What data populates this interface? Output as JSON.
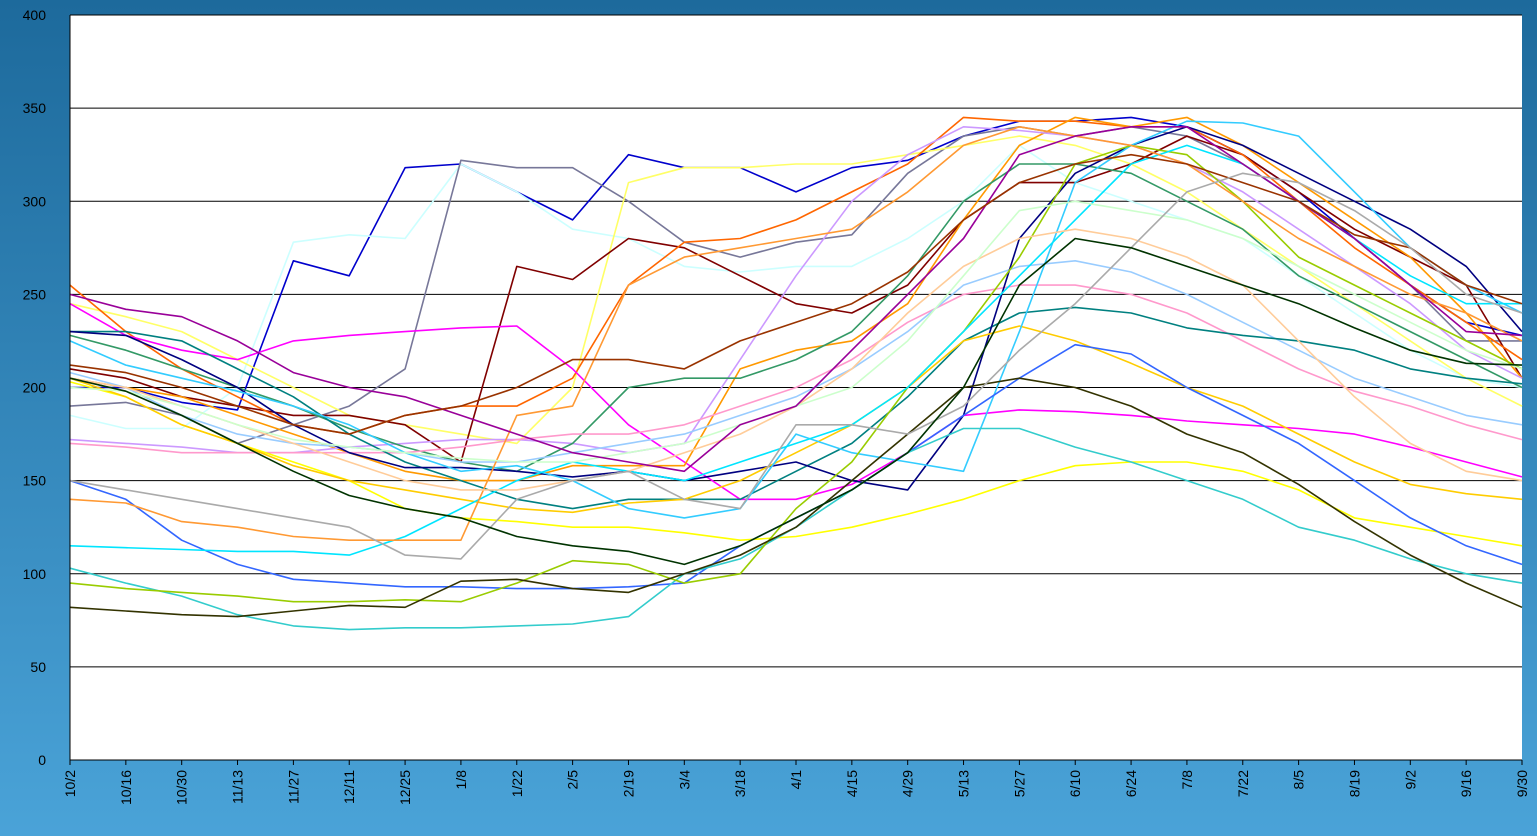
{
  "chart_data": {
    "type": "line",
    "categories": [
      "10/2",
      "10/16",
      "10/30",
      "11/13",
      "11/27",
      "12/11",
      "12/25",
      "1/8",
      "1/22",
      "2/5",
      "2/19",
      "3/4",
      "3/18",
      "4/1",
      "4/15",
      "4/29",
      "5/13",
      "5/27",
      "6/10",
      "6/24",
      "7/8",
      "7/22",
      "8/5",
      "8/19",
      "9/2",
      "9/16",
      "9/30"
    ],
    "ylim": [
      0,
      400
    ],
    "yticks": [
      0,
      50,
      100,
      150,
      200,
      250,
      300,
      350,
      400
    ],
    "grid": true,
    "series": [
      {
        "color": "#0000cc",
        "values": [
          200,
          200,
          192,
          188,
          268,
          260,
          318,
          320,
          305,
          290,
          325,
          318,
          318,
          305,
          318,
          322,
          335,
          343,
          343,
          345,
          340,
          325,
          305,
          280,
          255,
          235,
          228
        ]
      },
      {
        "color": "#ccffff",
        "values": [
          185,
          178,
          178,
          200,
          278,
          282,
          280,
          320,
          305,
          285,
          280,
          265,
          262,
          265,
          265,
          280,
          300,
          330,
          310,
          300,
          290,
          280,
          260,
          240,
          220,
          205,
          200
        ]
      },
      {
        "color": "#777799",
        "values": [
          190,
          192,
          185,
          170,
          180,
          190,
          210,
          322,
          318,
          318,
          300,
          278,
          270,
          278,
          282,
          315,
          335,
          340,
          335,
          340,
          335,
          320,
          300,
          280,
          255,
          225,
          225
        ]
      },
      {
        "color": "#ffff66",
        "values": [
          245,
          238,
          230,
          215,
          200,
          185,
          180,
          175,
          170,
          200,
          310,
          318,
          318,
          320,
          320,
          325,
          330,
          335,
          330,
          320,
          305,
          285,
          265,
          245,
          225,
          205,
          190
        ]
      },
      {
        "color": "#800000",
        "values": [
          210,
          205,
          195,
          190,
          185,
          185,
          180,
          160,
          265,
          258,
          280,
          275,
          260,
          245,
          240,
          255,
          290,
          310,
          310,
          320,
          335,
          325,
          305,
          285,
          270,
          255,
          205
        ]
      },
      {
        "color": "#ff6600",
        "values": [
          255,
          230,
          210,
          195,
          180,
          175,
          185,
          190,
          190,
          205,
          255,
          278,
          280,
          290,
          305,
          320,
          345,
          343,
          343,
          340,
          340,
          325,
          300,
          275,
          255,
          235,
          215
        ]
      },
      {
        "color": "#ff00ff",
        "values": [
          245,
          228,
          220,
          215,
          225,
          228,
          230,
          232,
          233,
          210,
          180,
          160,
          140,
          140,
          148,
          165,
          185,
          188,
          187,
          185,
          182,
          180,
          178,
          175,
          168,
          160,
          152
        ]
      },
      {
        "color": "#ff9900",
        "values": [
          205,
          200,
          195,
          185,
          175,
          165,
          155,
          150,
          150,
          158,
          158,
          158,
          210,
          220,
          225,
          245,
          290,
          330,
          345,
          340,
          345,
          330,
          310,
          290,
          270,
          240,
          205
        ]
      },
      {
        "color": "#cc99ff",
        "values": [
          172,
          170,
          168,
          165,
          165,
          168,
          170,
          172,
          172,
          170,
          165,
          170,
          215,
          260,
          300,
          325,
          340,
          338,
          335,
          330,
          320,
          305,
          285,
          265,
          245,
          220,
          205
        ]
      },
      {
        "color": "#339966",
        "values": [
          228,
          220,
          210,
          200,
          190,
          178,
          168,
          160,
          155,
          170,
          200,
          205,
          205,
          215,
          230,
          260,
          300,
          320,
          320,
          315,
          300,
          285,
          260,
          245,
          230,
          215,
          200
        ]
      },
      {
        "color": "#ff99cc",
        "values": [
          170,
          168,
          165,
          165,
          165,
          165,
          165,
          168,
          172,
          175,
          175,
          180,
          190,
          200,
          215,
          235,
          250,
          255,
          255,
          250,
          240,
          225,
          210,
          198,
          190,
          180,
          172
        ]
      },
      {
        "color": "#99ccff",
        "values": [
          208,
          200,
          185,
          175,
          170,
          168,
          165,
          160,
          160,
          165,
          170,
          175,
          185,
          195,
          210,
          230,
          255,
          265,
          268,
          262,
          250,
          235,
          220,
          205,
          195,
          185,
          180
        ]
      },
      {
        "color": "#008080",
        "values": [
          230,
          230,
          225,
          210,
          195,
          175,
          160,
          150,
          140,
          135,
          140,
          140,
          140,
          155,
          170,
          195,
          225,
          240,
          243,
          240,
          232,
          228,
          225,
          220,
          210,
          205,
          202
        ]
      },
      {
        "color": "#000080",
        "values": [
          230,
          228,
          215,
          200,
          180,
          165,
          157,
          157,
          155,
          152,
          155,
          150,
          155,
          160,
          150,
          145,
          185,
          280,
          315,
          330,
          340,
          330,
          315,
          300,
          285,
          265,
          230
        ]
      },
      {
        "color": "#ffff00",
        "values": [
          203,
          195,
          180,
          170,
          160,
          150,
          135,
          130,
          128,
          125,
          125,
          122,
          118,
          120,
          125,
          132,
          140,
          150,
          158,
          160,
          160,
          155,
          145,
          130,
          125,
          120,
          115
        ]
      },
      {
        "color": "#ffcc00",
        "values": [
          205,
          195,
          180,
          170,
          158,
          150,
          145,
          140,
          135,
          133,
          138,
          140,
          150,
          165,
          180,
          200,
          225,
          233,
          225,
          213,
          200,
          190,
          175,
          160,
          148,
          143,
          140
        ]
      },
      {
        "color": "#33ccff",
        "values": [
          225,
          212,
          205,
          198,
          190,
          180,
          165,
          155,
          158,
          150,
          135,
          130,
          135,
          175,
          165,
          160,
          155,
          230,
          310,
          330,
          343,
          342,
          335,
          305,
          275,
          255,
          240
        ]
      },
      {
        "color": "#3366ff",
        "values": [
          150,
          140,
          118,
          105,
          97,
          95,
          93,
          93,
          92,
          92,
          93,
          95,
          115,
          130,
          145,
          165,
          185,
          205,
          223,
          218,
          200,
          185,
          170,
          150,
          130,
          115,
          105
        ]
      },
      {
        "color": "#33cccc",
        "values": [
          103,
          95,
          88,
          78,
          72,
          70,
          71,
          71,
          72,
          73,
          77,
          100,
          108,
          125,
          145,
          165,
          178,
          178,
          168,
          160,
          150,
          140,
          125,
          118,
          108,
          100,
          95
        ]
      },
      {
        "color": "#99cc00",
        "values": [
          95,
          92,
          90,
          88,
          85,
          85,
          86,
          85,
          95,
          107,
          105,
          95,
          100,
          135,
          160,
          200,
          230,
          270,
          320,
          330,
          325,
          300,
          270,
          255,
          240,
          225,
          210
        ]
      },
      {
        "color": "#333300",
        "values": [
          82,
          80,
          78,
          77,
          80,
          83,
          82,
          96,
          97,
          92,
          90,
          100,
          110,
          125,
          150,
          175,
          200,
          205,
          200,
          190,
          175,
          165,
          148,
          128,
          110,
          95,
          82
        ]
      },
      {
        "color": "#00e5ff",
        "values": [
          115,
          114,
          113,
          112,
          112,
          110,
          120,
          135,
          150,
          160,
          155,
          150,
          160,
          170,
          180,
          200,
          230,
          260,
          290,
          320,
          330,
          320,
          300,
          280,
          260,
          245,
          245
        ]
      },
      {
        "color": "#ff9933",
        "values": [
          140,
          138,
          128,
          125,
          120,
          118,
          118,
          118,
          185,
          190,
          255,
          270,
          275,
          280,
          285,
          305,
          330,
          340,
          335,
          330,
          320,
          300,
          280,
          265,
          250,
          240,
          225
        ]
      },
      {
        "color": "#ffcc99",
        "values": [
          205,
          200,
          190,
          180,
          170,
          160,
          150,
          145,
          145,
          150,
          155,
          165,
          175,
          190,
          210,
          240,
          265,
          280,
          285,
          280,
          270,
          255,
          225,
          195,
          170,
          155,
          150
        ]
      },
      {
        "color": "#ccffcc",
        "values": [
          200,
          198,
          190,
          180,
          172,
          168,
          165,
          162,
          160,
          160,
          165,
          170,
          180,
          190,
          200,
          225,
          260,
          295,
          300,
          295,
          290,
          280,
          265,
          250,
          235,
          220,
          210
        ]
      },
      {
        "color": "#990099",
        "values": [
          250,
          242,
          238,
          225,
          208,
          200,
          195,
          185,
          175,
          165,
          160,
          155,
          180,
          190,
          220,
          250,
          280,
          325,
          335,
          340,
          340,
          320,
          300,
          280,
          255,
          230,
          228
        ]
      },
      {
        "color": "#993300",
        "values": [
          212,
          208,
          200,
          190,
          180,
          175,
          185,
          190,
          200,
          215,
          215,
          210,
          225,
          235,
          245,
          262,
          290,
          310,
          320,
          325,
          320,
          310,
          300,
          282,
          275,
          255,
          245
        ]
      },
      {
        "color": "#aaaaaa",
        "values": [
          150,
          145,
          140,
          135,
          130,
          125,
          110,
          108,
          140,
          150,
          155,
          140,
          135,
          180,
          180,
          175,
          190,
          220,
          245,
          275,
          305,
          315,
          310,
          295,
          275,
          250,
          240
        ]
      },
      {
        "color": "#003300",
        "values": [
          205,
          198,
          185,
          170,
          155,
          142,
          135,
          130,
          120,
          115,
          112,
          105,
          115,
          130,
          145,
          165,
          200,
          255,
          280,
          275,
          265,
          255,
          245,
          232,
          220,
          213,
          212
        ]
      }
    ]
  }
}
